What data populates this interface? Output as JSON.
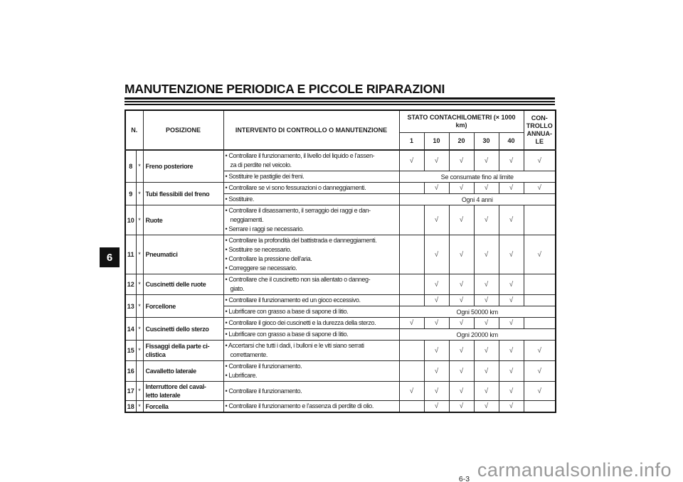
{
  "page": {
    "title": "MANUTENZIONE PERIODICA E PICCOLE RIPARAZIONI",
    "chapter_tab": "6",
    "page_number": "6-3",
    "watermark": "carmanualsonline.info"
  },
  "colors": {
    "tab_bg": "#111111",
    "tab_text": "#ffffff",
    "watermark_gray": "#999999",
    "text": "#1c1c1c"
  },
  "table": {
    "check_mark": "√",
    "header": {
      "n": "N.",
      "position": "POSIZIONE",
      "intervention": "INTERVENTO DI CONTROLLO O MANUTENZIONE",
      "odometer": "STATO CONTACHILOMETRI (× 1000\nkm)",
      "km_cols": [
        "1",
        "10",
        "20",
        "30",
        "40"
      ],
      "annual": "CON-\nTROLLO\nANNUA-\nLE"
    },
    "rows": [
      {
        "n": "8",
        "star": "*",
        "position": "Freno posteriore",
        "subrows": [
          {
            "bullets": [
              "• Controllare il funzionamento, il livello del liquido e l’assen-\nza di perdite nel veicolo."
            ],
            "checks": [
              1,
              1,
              1,
              1,
              1,
              1
            ]
          },
          {
            "bullets": [
              "• Sostituire le pastiglie dei freni."
            ],
            "span": "Se consumate fino al limite"
          }
        ]
      },
      {
        "n": "9",
        "star": "*",
        "position": "Tubi flessibili del freno",
        "subrows": [
          {
            "bullets": [
              "• Controllare se vi sono fessurazioni o danneggiamenti."
            ],
            "checks": [
              0,
              1,
              1,
              1,
              1,
              1
            ]
          },
          {
            "bullets": [
              "• Sostituire."
            ],
            "span": "Ogni 4 anni"
          }
        ]
      },
      {
        "n": "10",
        "star": "*",
        "position": "Ruote",
        "subrows": [
          {
            "bullets": [
              "• Controllare il disassamento, il serraggio dei raggi e dan-\nneggiamenti.",
              "• Serrare i raggi se necessario."
            ],
            "checks": [
              0,
              1,
              1,
              1,
              1,
              0
            ]
          }
        ]
      },
      {
        "n": "11",
        "star": "*",
        "position": "Pneumatici",
        "subrows": [
          {
            "bullets": [
              "• Controllare la profondità del battistrada e danneggiamenti.",
              "• Sostituire se necessario.",
              "• Controllare la pressione dell’aria.",
              "• Correggere se necessario."
            ],
            "checks": [
              0,
              1,
              1,
              1,
              1,
              1
            ]
          }
        ]
      },
      {
        "n": "12",
        "star": "*",
        "position": "Cuscinetti delle ruote",
        "subrows": [
          {
            "bullets": [
              "• Controllare che il cuscinetto non sia allentato o danneg-\ngiato."
            ],
            "checks": [
              0,
              1,
              1,
              1,
              1,
              0
            ]
          }
        ]
      },
      {
        "n": "13",
        "star": "*",
        "position": "Forcellone",
        "subrows": [
          {
            "bullets": [
              "• Controllare il funzionamento ed un gioco eccessivo."
            ],
            "checks": [
              0,
              1,
              1,
              1,
              1,
              0
            ]
          },
          {
            "bullets": [
              "• Lubrificare con grasso a base di sapone di litio."
            ],
            "span": "Ogni 50000 km"
          }
        ]
      },
      {
        "n": "14",
        "star": "*",
        "position": "Cuscinetti dello sterzo",
        "subrows": [
          {
            "bullets": [
              "• Controllare il gioco dei cuscinetti e la durezza della sterzo."
            ],
            "checks": [
              1,
              1,
              1,
              1,
              1,
              0
            ]
          },
          {
            "bullets": [
              "• Lubrificare con grasso a base di sapone di litio."
            ],
            "span": "Ogni 20000 km"
          }
        ]
      },
      {
        "n": "15",
        "star": "*",
        "position": "Fissaggi della parte ci-\nclistica",
        "subrows": [
          {
            "bullets": [
              "• Accertarsi che tutti i dadi, i bulloni e le viti siano serrati\ncorrettamente."
            ],
            "checks": [
              0,
              1,
              1,
              1,
              1,
              1
            ]
          }
        ]
      },
      {
        "n": "16",
        "star": "",
        "position": "Cavalletto laterale",
        "subrows": [
          {
            "bullets": [
              "• Controllare il funzionamento.",
              "• Lubrificare."
            ],
            "checks": [
              0,
              1,
              1,
              1,
              1,
              1
            ]
          }
        ]
      },
      {
        "n": "17",
        "star": "*",
        "position": "Interruttore del caval-\nletto laterale",
        "subrows": [
          {
            "bullets": [
              "• Controllare il funzionamento."
            ],
            "checks": [
              1,
              1,
              1,
              1,
              1,
              1
            ]
          }
        ]
      },
      {
        "n": "18",
        "star": "*",
        "position": "Forcella",
        "subrows": [
          {
            "bullets": [
              "• Controllare il funzionamento e l’assenza di perdite di olio."
            ],
            "checks": [
              0,
              1,
              1,
              1,
              1,
              0
            ]
          }
        ]
      }
    ]
  }
}
